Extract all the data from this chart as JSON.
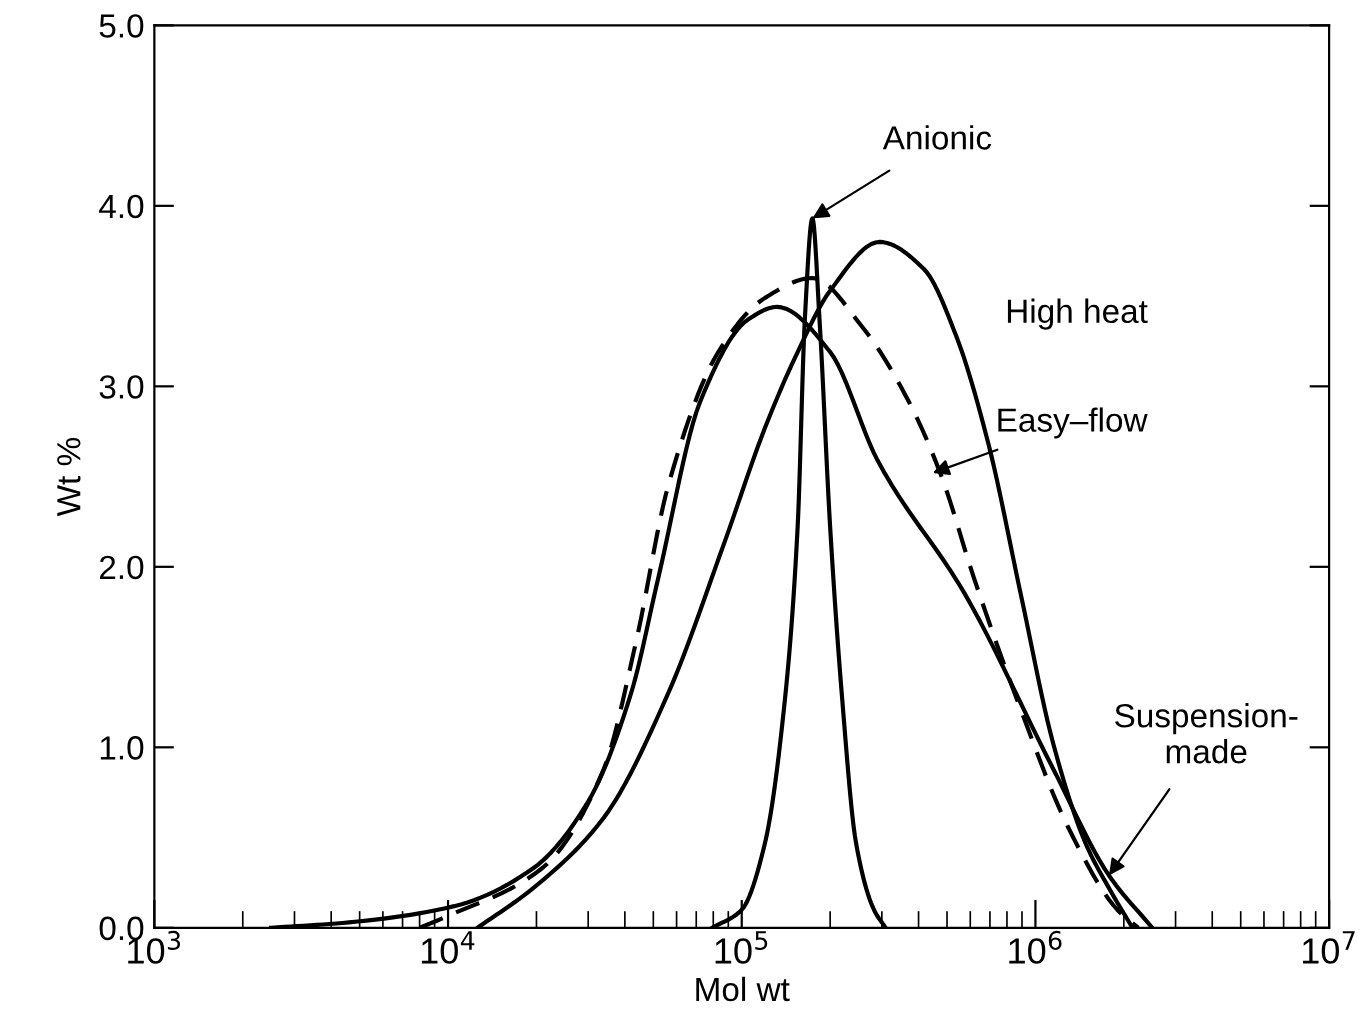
{
  "chart_data": {
    "type": "line",
    "xlabel": "Mol wt",
    "ylabel": "Wt %",
    "log": "x",
    "xlim": [
      1000,
      10000000
    ],
    "ylim": [
      0,
      5
    ],
    "xticks": [
      {
        "value": 1000,
        "label": "10$^{3}$"
      },
      {
        "value": 10000,
        "label": "10$^{4}$"
      },
      {
        "value": 100000,
        "label": "10$^{5}$"
      },
      {
        "value": 1000000,
        "label": "10$^{6}$"
      },
      {
        "value": 10000000,
        "label": "10$^{7}$"
      }
    ],
    "yticks": [
      {
        "value": 0,
        "label": "0.0"
      },
      {
        "value": 1,
        "label": "1.0"
      },
      {
        "value": 2,
        "label": "2.0"
      },
      {
        "value": 3,
        "label": "3.0"
      },
      {
        "value": 4,
        "label": "4.0"
      },
      {
        "value": 5,
        "label": "5.0"
      }
    ],
    "grid": false,
    "legend": false,
    "series": [
      {
        "color": "#000000",
        "line_style": "solid",
        "x": [
          2500,
          4600,
          10500,
          19500,
          30000,
          42000,
          52000,
          72000,
          105000,
          132000,
          200000,
          290000,
          575000,
          1150000,
          1780000,
          2500000
        ],
        "values": [
          0,
          0.03,
          0.12,
          0.33,
          0.7,
          1.3,
          1.94,
          2.91,
          3.37,
          3.44,
          3.19,
          2.59,
          1.85,
          0.88,
          0.29,
          0
        ]
      },
      {
        "color": "#000000",
        "line_style": "dashed",
        "x": [
          8000,
          9800,
          20900,
          33900,
          43600,
          56200,
          83200,
          120000,
          174000,
          257000,
          372000,
          479000,
          617000,
          891000,
          1290000,
          1900000,
          2240000
        ],
        "values": [
          0,
          0.06,
          0.33,
          0.88,
          1.58,
          2.45,
          3.19,
          3.49,
          3.6,
          3.33,
          2.91,
          2.5,
          1.94,
          1.21,
          0.56,
          0.1,
          0
        ]
      },
      {
        "color": "#000000",
        "line_style": "solid",
        "x": [
          12600,
          19500,
          33900,
          56200,
          87100,
          120000,
          155000,
          200000,
          295000,
          417000,
          537000,
          692000,
          891000,
          1150000,
          1480000,
          1780000,
          2140000
        ],
        "values": [
          0,
          0.22,
          0.61,
          1.3,
          2.13,
          2.77,
          3.19,
          3.53,
          3.8,
          3.65,
          3.28,
          2.68,
          1.85,
          1.02,
          0.47,
          0.22,
          0
        ]
      },
      {
        "color": "#000000",
        "line_style": "solid",
        "x": [
          79400,
          100000,
          120000,
          141000,
          155000,
          164000,
          174000,
          184000,
          200000,
          219000,
          245000,
          282000,
          309000
        ],
        "values": [
          0,
          0.1,
          0.47,
          1.3,
          2.22,
          3.37,
          3.93,
          3.37,
          2.22,
          1.3,
          0.47,
          0.1,
          0
        ]
      }
    ],
    "annotations": [
      {
        "text": "Anionic",
        "x": 174000,
        "y": 3.93
      },
      "High heat",
      {
        "text": "Easy–flow",
        "x": 447000,
        "y": 2.52
      },
      {
        "text": "Suspension-\nmade",
        "x": 1780000,
        "y": 0.29
      }
    ]
  }
}
